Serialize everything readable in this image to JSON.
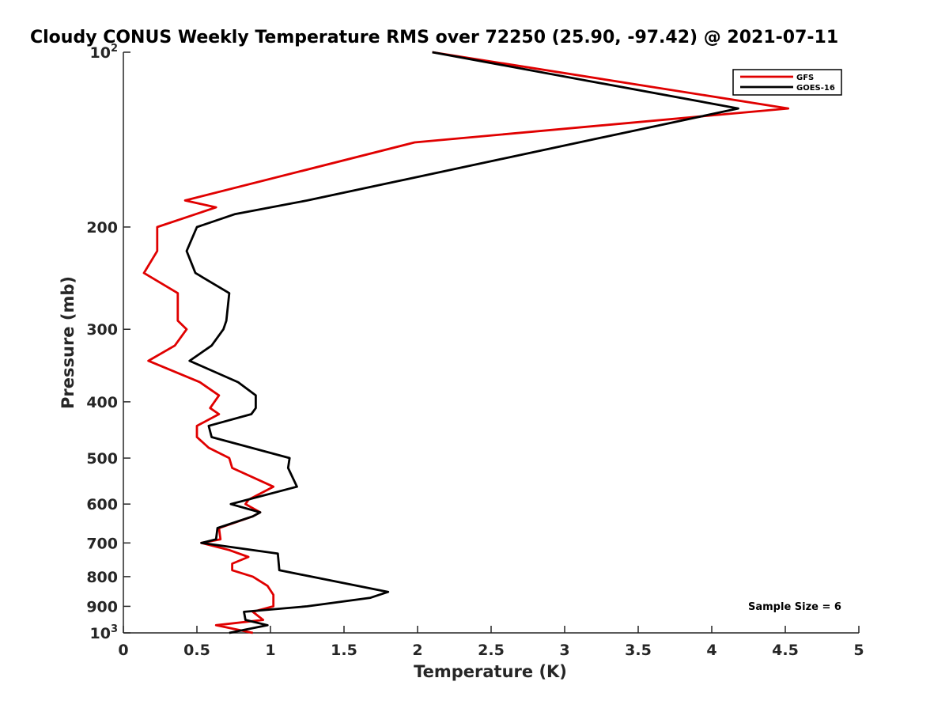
{
  "chart_data": {
    "type": "line",
    "title": "Cloudy CONUS Weekly Temperature RMS over 72250 (25.90, -97.42) @ 2021-07-11",
    "xlabel": "Temperature (K)",
    "ylabel": "Pressure (mb)",
    "xlim": [
      0,
      5
    ],
    "ylim": [
      1000,
      100
    ],
    "y_scale": "log",
    "y_reversed": true,
    "grid": false,
    "legend_position": "top-right",
    "x_ticks": [
      "0",
      "0.5",
      "1",
      "1.5",
      "2",
      "2.5",
      "3",
      "3.5",
      "4",
      "4.5",
      "5"
    ],
    "y_ticks": [
      {
        "value": 100,
        "base": "10",
        "sup": "2"
      },
      {
        "value": 200,
        "label": "200"
      },
      {
        "value": 300,
        "label": "300"
      },
      {
        "value": 400,
        "label": "400"
      },
      {
        "value": 500,
        "label": "500"
      },
      {
        "value": 600,
        "label": "600"
      },
      {
        "value": 700,
        "label": "700"
      },
      {
        "value": 800,
        "label": "800"
      },
      {
        "value": 900,
        "label": "900"
      },
      {
        "value": 1000,
        "base": "10",
        "sup": "3"
      }
    ],
    "series": [
      {
        "name": "GFS",
        "color": "#e00000",
        "points": [
          [
            2.1,
            100
          ],
          [
            4.52,
            125
          ],
          [
            1.98,
            143
          ],
          [
            0.42,
            180
          ],
          [
            0.63,
            185
          ],
          [
            0.23,
            200
          ],
          [
            0.23,
            220
          ],
          [
            0.14,
            240
          ],
          [
            0.37,
            260
          ],
          [
            0.37,
            290
          ],
          [
            0.43,
            300
          ],
          [
            0.35,
            320
          ],
          [
            0.17,
            340
          ],
          [
            0.52,
            370
          ],
          [
            0.65,
            390
          ],
          [
            0.59,
            410
          ],
          [
            0.65,
            420
          ],
          [
            0.5,
            440
          ],
          [
            0.5,
            460
          ],
          [
            0.58,
            480
          ],
          [
            0.72,
            500
          ],
          [
            0.74,
            520
          ],
          [
            1.02,
            560
          ],
          [
            0.85,
            590
          ],
          [
            0.83,
            600
          ],
          [
            0.93,
            620
          ],
          [
            0.88,
            630
          ],
          [
            0.65,
            660
          ],
          [
            0.66,
            690
          ],
          [
            0.53,
            700
          ],
          [
            0.72,
            720
          ],
          [
            0.85,
            740
          ],
          [
            0.74,
            760
          ],
          [
            0.74,
            780
          ],
          [
            0.88,
            800
          ],
          [
            0.98,
            830
          ],
          [
            1.02,
            860
          ],
          [
            1.02,
            900
          ],
          [
            0.88,
            920
          ],
          [
            0.95,
            950
          ],
          [
            0.63,
            970
          ],
          [
            0.88,
            1000
          ]
        ]
      },
      {
        "name": "GOES-16",
        "color": "#000000",
        "points": [
          [
            2.1,
            100
          ],
          [
            4.18,
            125
          ],
          [
            1.25,
            180
          ],
          [
            0.76,
            190
          ],
          [
            0.5,
            200
          ],
          [
            0.43,
            220
          ],
          [
            0.49,
            240
          ],
          [
            0.72,
            260
          ],
          [
            0.7,
            290
          ],
          [
            0.68,
            300
          ],
          [
            0.6,
            320
          ],
          [
            0.45,
            340
          ],
          [
            0.78,
            370
          ],
          [
            0.9,
            390
          ],
          [
            0.9,
            410
          ],
          [
            0.87,
            420
          ],
          [
            0.58,
            440
          ],
          [
            0.6,
            460
          ],
          [
            1.13,
            500
          ],
          [
            1.12,
            520
          ],
          [
            1.18,
            560
          ],
          [
            0.73,
            600
          ],
          [
            0.93,
            620
          ],
          [
            0.88,
            630
          ],
          [
            0.64,
            660
          ],
          [
            0.63,
            690
          ],
          [
            0.53,
            700
          ],
          [
            1.05,
            730
          ],
          [
            1.06,
            780
          ],
          [
            1.8,
            850
          ],
          [
            1.68,
            870
          ],
          [
            1.25,
            900
          ],
          [
            0.82,
            920
          ],
          [
            0.83,
            950
          ],
          [
            0.98,
            970
          ],
          [
            0.72,
            1000
          ]
        ]
      }
    ],
    "annotation": "Sample Size = 6"
  }
}
